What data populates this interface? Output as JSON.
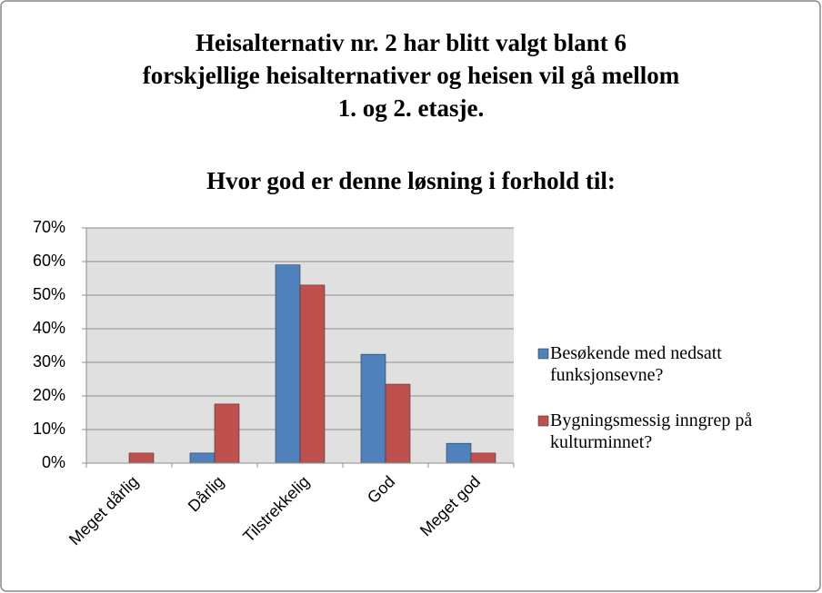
{
  "chart_data": {
    "type": "bar",
    "title": [
      "Heisalternativ nr. 2 har blitt valgt blant 6",
      "forskjellige heisalternativer og heisen vil gå mellom",
      "1. og 2. etasje."
    ],
    "subtitle": "Hvor god er denne løsning i forhold til:",
    "categories": [
      "Meget dårlig",
      "Dårlig",
      "Tilstrekkelig",
      "God",
      "Meget god"
    ],
    "series": [
      {
        "name": "Besøkende med nedsatt funksjonsevne?",
        "color": "#4f81bd",
        "values": [
          0,
          3,
          59,
          32.4,
          5.9
        ]
      },
      {
        "name": "Bygningsmessig inngrep på kulturminnet?",
        "color": "#c0504d",
        "values": [
          3,
          17.6,
          53,
          23.5,
          3
        ]
      }
    ],
    "ylim": [
      0,
      70
    ],
    "yticks": [
      {
        "value": 0,
        "label": "0%"
      },
      {
        "value": 10,
        "label": "10%"
      },
      {
        "value": 20,
        "label": "20%"
      },
      {
        "value": 30,
        "label": "30%"
      },
      {
        "value": 40,
        "label": "40%"
      },
      {
        "value": 50,
        "label": "50%"
      },
      {
        "value": 60,
        "label": "60%"
      },
      {
        "value": 70,
        "label": "70%"
      }
    ],
    "grid": true,
    "legend": "right"
  }
}
